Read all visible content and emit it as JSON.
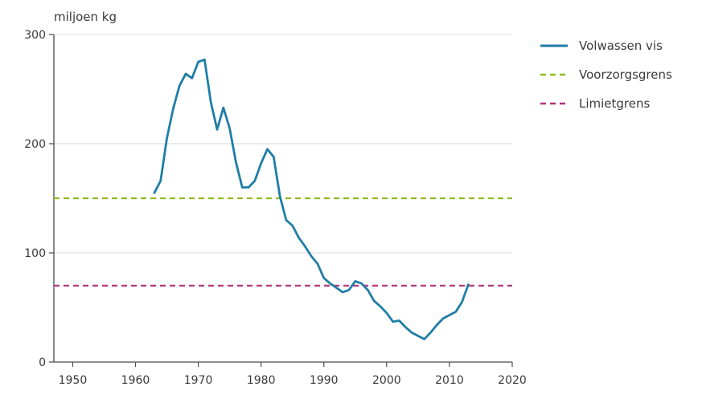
{
  "chart_data": {
    "type": "line",
    "ylabel": "miljoen kg",
    "xlim": [
      1947,
      2020
    ],
    "ylim": [
      0,
      300
    ],
    "x_ticks": [
      1950,
      1960,
      1970,
      1980,
      1990,
      2000,
      2010,
      2020
    ],
    "y_ticks": [
      0,
      100,
      200,
      300
    ],
    "grid": true,
    "legend_position": "top-right",
    "series": [
      {
        "name": "Volwassen vis",
        "color": "#1f7ea6",
        "style": "solid",
        "x": [
          1963,
          1964,
          1965,
          1966,
          1967,
          1968,
          1969,
          1970,
          1971,
          1972,
          1973,
          1974,
          1975,
          1976,
          1977,
          1978,
          1979,
          1980,
          1981,
          1982,
          1983,
          1984,
          1985,
          1986,
          1987,
          1988,
          1989,
          1990,
          1991,
          1992,
          1993,
          1994,
          1995,
          1996,
          1997,
          1998,
          1999,
          2000,
          2001,
          2002,
          2003,
          2004,
          2005,
          2006,
          2007,
          2008,
          2009,
          2010,
          2011,
          2012,
          2013
        ],
        "y": [
          155,
          166,
          205,
          232,
          253,
          264,
          260,
          275,
          277,
          238,
          213,
          233,
          214,
          183,
          160,
          160,
          166,
          182,
          195,
          188,
          152,
          130,
          125,
          114,
          106,
          97,
          90,
          77,
          72,
          68,
          64,
          66,
          74,
          72,
          66,
          56,
          51,
          45,
          37,
          38,
          32,
          27,
          24,
          21,
          27,
          34,
          40,
          43,
          46,
          55,
          71
        ]
      },
      {
        "name": "Voorzorgsgrens",
        "color": "#8fbb21",
        "style": "dashed",
        "x": [
          1947,
          2020
        ],
        "y": [
          150,
          150
        ]
      },
      {
        "name": "Limietgrens",
        "color": "#b0337e",
        "style": "dashed",
        "x": [
          1947,
          2020
        ],
        "y": [
          70,
          70
        ]
      }
    ]
  }
}
